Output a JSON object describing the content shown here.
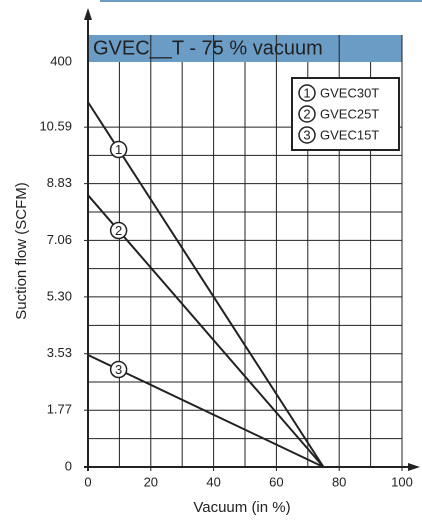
{
  "chart_data": {
    "type": "line",
    "title": "GVEC__T - 75 % vacuum",
    "x_label": "Vacuum (in %)",
    "y_label": "Suction flow (SCFM)",
    "annotations": [
      {
        "text": "400"
      }
    ],
    "xlim": [
      0,
      100
    ],
    "xticks": [
      0,
      20,
      40,
      60,
      80,
      100
    ],
    "ylim": [
      0,
      12.62
    ],
    "yticks": [
      0,
      1.77,
      3.53,
      {
        "value": 5.3,
        "label": "5.30"
      },
      7.06,
      8.83,
      10.59
    ],
    "grid": true,
    "legend": "upper right",
    "series": [
      {
        "name": "GVEC30T",
        "marker": "1",
        "color": "#222222",
        "x": [
          0,
          75
        ],
        "values": [
          11.37,
          0
        ]
      },
      {
        "name": "GVEC25T",
        "marker": "2",
        "color": "#222222",
        "x": [
          0,
          75
        ],
        "values": [
          8.47,
          0
        ]
      },
      {
        "name": "GVEC15T",
        "marker": "3",
        "color": "#222222",
        "x": [
          0,
          75
        ],
        "values": [
          3.49,
          0
        ]
      }
    ]
  }
}
